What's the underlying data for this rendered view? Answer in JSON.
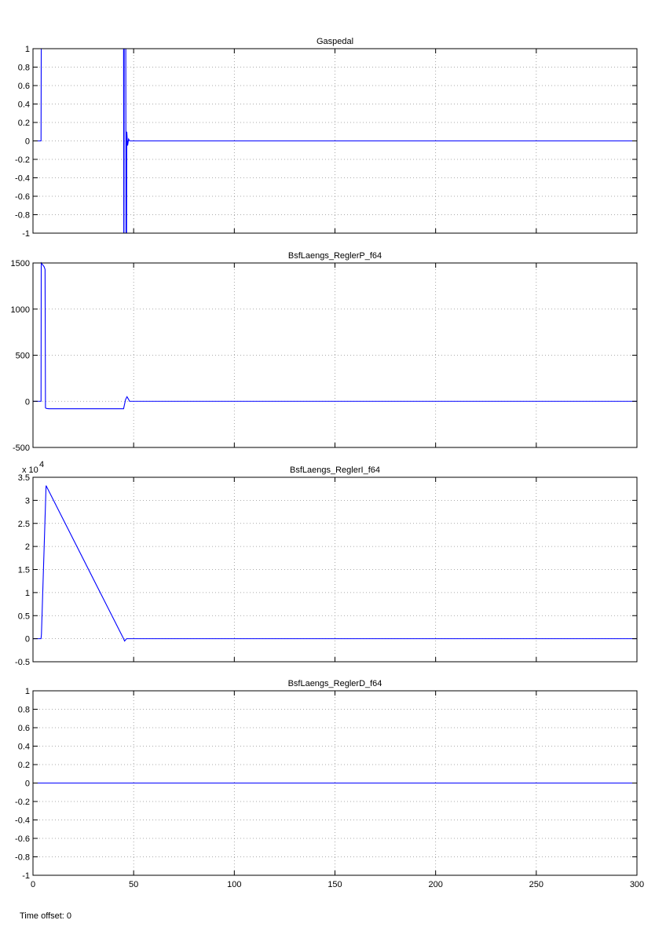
{
  "footer": {
    "label": "Time offset:",
    "value": "0"
  },
  "colors": {
    "series": "#0000ff",
    "grid": "#909090",
    "axes": "#000000",
    "background": "#ffffff"
  },
  "chart_data": [
    {
      "type": "line",
      "title": "Gaspedal",
      "xlabel": "",
      "ylabel": "",
      "xlim": [
        0,
        300
      ],
      "ylim": [
        -1,
        1
      ],
      "xticks": [
        0,
        50,
        100,
        150,
        200,
        250,
        300
      ],
      "xtick_labels": [
        "",
        "",
        "",
        "",
        "",
        "",
        ""
      ],
      "yticks": [
        -1,
        -0.8,
        -0.6,
        -0.4,
        -0.2,
        0,
        0.2,
        0.4,
        0.6,
        0.8,
        1
      ],
      "ytick_labels": [
        "-1",
        "-0.8",
        "-0.6",
        "-0.4",
        "-0.2",
        "0",
        "0.2",
        "0.4",
        "0.6",
        "0.8",
        "1"
      ],
      "exponent_label": "",
      "grid": true,
      "series": [
        {
          "x": [
            0,
            4,
            4.1,
            45,
            45.1,
            45.2,
            45.3,
            46.1,
            46.2,
            46.5,
            46.6,
            47,
            47.5,
            48,
            50,
            300
          ],
          "y": [
            0,
            0,
            1,
            1,
            -1,
            -1,
            1,
            1,
            -1,
            -1,
            0.1,
            -0.05,
            0.02,
            0,
            0,
            0
          ]
        }
      ]
    },
    {
      "type": "line",
      "title": "BsfLaengs_ReglerP_f64",
      "xlabel": "",
      "ylabel": "",
      "xlim": [
        0,
        300
      ],
      "ylim": [
        -500,
        1500
      ],
      "xticks": [
        0,
        50,
        100,
        150,
        200,
        250,
        300
      ],
      "xtick_labels": [
        "",
        "",
        "",
        "",
        "",
        "",
        ""
      ],
      "yticks": [
        -500,
        0,
        500,
        1000,
        1500
      ],
      "ytick_labels": [
        "-500",
        "0",
        "500",
        "1000",
        "1500"
      ],
      "exponent_label": "",
      "grid": true,
      "series": [
        {
          "x": [
            0,
            4,
            4.1,
            5.5,
            6,
            6.2,
            6.4,
            7,
            8,
            45,
            46,
            46.7,
            47.5,
            48,
            300
          ],
          "y": [
            0,
            0,
            1500,
            1460,
            1430,
            -70,
            -75,
            -78,
            -80,
            -80,
            20,
            50,
            20,
            0,
            0
          ]
        }
      ]
    },
    {
      "type": "line",
      "title": "BsfLaengs_ReglerI_f64",
      "xlabel": "",
      "ylabel": "",
      "xlim": [
        0,
        300
      ],
      "ylim": [
        -0.5,
        3.5
      ],
      "xticks": [
        0,
        50,
        100,
        150,
        200,
        250,
        300
      ],
      "xtick_labels": [
        "",
        "",
        "",
        "",
        "",
        "",
        ""
      ],
      "yticks": [
        -0.5,
        0,
        0.5,
        1,
        1.5,
        2,
        2.5,
        3,
        3.5
      ],
      "ytick_labels": [
        "-0.5",
        "0",
        "0.5",
        "1",
        "1.5",
        "2",
        "2.5",
        "3",
        "3.5"
      ],
      "exponent_label": "x 10",
      "exponent_power": "4",
      "grid": true,
      "series": [
        {
          "x": [
            0,
            4,
            4.2,
            6.5,
            45,
            45.5,
            46.5,
            300
          ],
          "y": [
            0,
            0,
            0.1,
            3.32,
            0,
            -0.05,
            0,
            0
          ]
        }
      ]
    },
    {
      "type": "line",
      "title": "BsfLaengs_ReglerD_f64",
      "xlabel": "",
      "ylabel": "",
      "xlim": [
        0,
        300
      ],
      "ylim": [
        -1,
        1
      ],
      "xticks": [
        0,
        50,
        100,
        150,
        200,
        250,
        300
      ],
      "xtick_labels": [
        "0",
        "50",
        "100",
        "150",
        "200",
        "250",
        "300"
      ],
      "yticks": [
        -1,
        -0.8,
        -0.6,
        -0.4,
        -0.2,
        0,
        0.2,
        0.4,
        0.6,
        0.8,
        1
      ],
      "ytick_labels": [
        "-1",
        "-0.8",
        "-0.6",
        "-0.4",
        "-0.2",
        "0",
        "0.2",
        "0.4",
        "0.6",
        "0.8",
        "1"
      ],
      "exponent_label": "",
      "grid": true,
      "series": [
        {
          "x": [
            0,
            300
          ],
          "y": [
            0,
            0
          ]
        }
      ]
    }
  ]
}
